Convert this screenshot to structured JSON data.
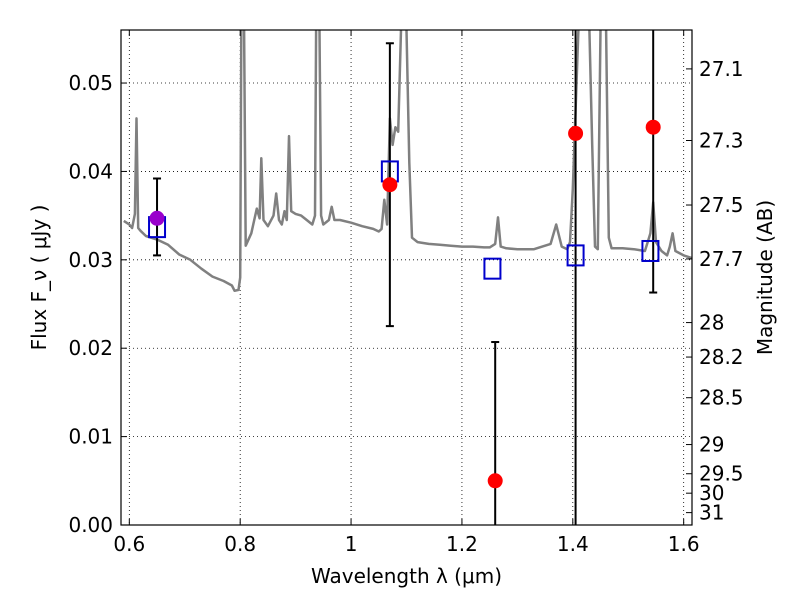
{
  "chart_data": {
    "type": "scatter",
    "xlabel": "Wavelength  λ (μm)",
    "ylabel": "Flux  F_ν  ( μJy )",
    "ylabel_right": "Magnitude (AB)",
    "xlim": [
      0.585,
      1.615
    ],
    "ylim": [
      0.0,
      0.056
    ],
    "grid": true,
    "x_ticks": [
      0.6,
      0.8,
      1.0,
      1.2,
      1.4,
      1.6
    ],
    "x_tick_labels": [
      "0.6",
      "0.8",
      "1",
      "1.2",
      "1.4",
      "1.6"
    ],
    "y_ticks": [
      0.0,
      0.01,
      0.02,
      0.03,
      0.04,
      0.05
    ],
    "y_tick_labels": [
      "0.00",
      "0.01",
      "0.02",
      "0.03",
      "0.04",
      "0.05"
    ],
    "right_ticks": [
      {
        "label": "27.1",
        "flux": 0.0516
      },
      {
        "label": "27.3",
        "flux": 0.0435
      },
      {
        "label": "27.5",
        "flux": 0.0362
      },
      {
        "label": "27.7",
        "flux": 0.0301
      },
      {
        "label": "28",
        "flux": 0.0229
      },
      {
        "label": "28.2",
        "flux": 0.019
      },
      {
        "label": "28.5",
        "flux": 0.0144
      },
      {
        "label": "29",
        "flux": 0.0091
      },
      {
        "label": "29.5",
        "flux": 0.0058
      },
      {
        "label": "30",
        "flux": 0.0036
      },
      {
        "label": "31",
        "flux": 0.0014
      }
    ],
    "series": [
      {
        "kind": "line",
        "color": "#808080",
        "segments": [
          [
            [
              0.59,
              0.0344
            ],
            [
              0.6,
              0.034
            ],
            [
              0.605,
              0.0336
            ],
            [
              0.61,
              0.0352
            ],
            [
              0.613,
              0.046
            ],
            [
              0.616,
              0.0336
            ],
            [
              0.62,
              0.0333
            ],
            [
              0.63,
              0.0327
            ],
            [
              0.65,
              0.0323
            ],
            [
              0.67,
              0.0317
            ],
            [
              0.69,
              0.0306
            ],
            [
              0.71,
              0.03
            ],
            [
              0.73,
              0.029
            ],
            [
              0.75,
              0.0281
            ],
            [
              0.77,
              0.0276
            ],
            [
              0.785,
              0.0271
            ],
            [
              0.79,
              0.0265
            ],
            [
              0.797,
              0.0266
            ],
            [
              0.8,
              0.028
            ],
            [
              0.802,
              0.056
            ]
          ],
          [
            [
              0.807,
              0.056
            ],
            [
              0.81,
              0.0316
            ],
            [
              0.82,
              0.033
            ],
            [
              0.83,
              0.0358
            ],
            [
              0.835,
              0.0347
            ],
            [
              0.838,
              0.0415
            ],
            [
              0.842,
              0.0345
            ],
            [
              0.85,
              0.0338
            ],
            [
              0.86,
              0.035
            ],
            [
              0.865,
              0.0375
            ],
            [
              0.87,
              0.0345
            ],
            [
              0.875,
              0.034
            ],
            [
              0.88,
              0.0355
            ],
            [
              0.884,
              0.0345
            ],
            [
              0.888,
              0.044
            ],
            [
              0.892,
              0.0355
            ],
            [
              0.9,
              0.0352
            ],
            [
              0.91,
              0.035
            ],
            [
              0.92,
              0.0345
            ],
            [
              0.93,
              0.034
            ],
            [
              0.935,
              0.035
            ],
            [
              0.937,
              0.056
            ]
          ],
          [
            [
              0.943,
              0.056
            ],
            [
              0.946,
              0.035
            ],
            [
              0.95,
              0.034
            ],
            [
              0.96,
              0.0345
            ],
            [
              0.965,
              0.036
            ],
            [
              0.97,
              0.0345
            ],
            [
              0.98,
              0.0345
            ],
            [
              1.0,
              0.0342
            ],
            [
              1.02,
              0.0338
            ],
            [
              1.04,
              0.0335
            ],
            [
              1.05,
              0.0332
            ],
            [
              1.055,
              0.0335
            ],
            [
              1.06,
              0.0368
            ],
            [
              1.065,
              0.034
            ],
            [
              1.07,
              0.046
            ],
            [
              1.075,
              0.043
            ],
            [
              1.08,
              0.045
            ],
            [
              1.085,
              0.0445
            ],
            [
              1.09,
              0.056
            ]
          ],
          [
            [
              1.1,
              0.056
            ],
            [
              1.105,
              0.041
            ],
            [
              1.11,
              0.0325
            ],
            [
              1.12,
              0.032
            ],
            [
              1.14,
              0.0318
            ],
            [
              1.16,
              0.0317
            ],
            [
              1.18,
              0.0316
            ],
            [
              1.2,
              0.0315
            ],
            [
              1.22,
              0.0315
            ],
            [
              1.24,
              0.0314
            ],
            [
              1.25,
              0.0314
            ],
            [
              1.26,
              0.0318
            ],
            [
              1.265,
              0.0348
            ],
            [
              1.27,
              0.0315
            ],
            [
              1.28,
              0.0313
            ],
            [
              1.3,
              0.0312
            ],
            [
              1.32,
              0.0312
            ],
            [
              1.33,
              0.0312
            ],
            [
              1.34,
              0.0314
            ],
            [
              1.36,
              0.0318
            ],
            [
              1.37,
              0.034
            ],
            [
              1.38,
              0.0315
            ],
            [
              1.39,
              0.0312
            ],
            [
              1.395,
              0.032
            ],
            [
              1.4,
              0.038
            ],
            [
              1.41,
              0.056
            ]
          ],
          [
            [
              1.43,
              0.056
            ],
            [
              1.435,
              0.043
            ],
            [
              1.44,
              0.0315
            ],
            [
              1.445,
              0.0312
            ],
            [
              1.45,
              0.056
            ]
          ],
          [
            [
              1.46,
              0.056
            ],
            [
              1.465,
              0.0325
            ],
            [
              1.47,
              0.0313
            ],
            [
              1.49,
              0.0313
            ],
            [
              1.51,
              0.0312
            ],
            [
              1.53,
              0.031
            ],
            [
              1.535,
              0.032
            ],
            [
              1.54,
              0.033
            ],
            [
              1.545,
              0.0365
            ],
            [
              1.55,
              0.032
            ],
            [
              1.56,
              0.031
            ],
            [
              1.57,
              0.0305
            ],
            [
              1.575,
              0.0315
            ],
            [
              1.58,
              0.033
            ],
            [
              1.585,
              0.031
            ],
            [
              1.6,
              0.0305
            ],
            [
              1.615,
              0.0302
            ]
          ]
        ]
      },
      {
        "kind": "points",
        "marker": "open-square",
        "color": "#0000cc",
        "points": [
          {
            "x": 0.65,
            "y": 0.0337
          },
          {
            "x": 1.07,
            "y": 0.04
          },
          {
            "x": 1.255,
            "y": 0.029
          },
          {
            "x": 1.405,
            "y": 0.0305
          },
          {
            "x": 1.54,
            "y": 0.031
          }
        ]
      },
      {
        "kind": "points",
        "marker": "filled-circle",
        "color": "#ff0000",
        "points": [
          {
            "x": 0.65,
            "y": 0.0347,
            "color": "#9900cc",
            "err_low": 0.0305,
            "err_high": 0.0392
          },
          {
            "x": 1.07,
            "y": 0.0385,
            "err_low": 0.0225,
            "err_high": 0.0545
          },
          {
            "x": 1.26,
            "y": 0.005,
            "err_low": 0.0,
            "err_high": 0.0207
          },
          {
            "x": 1.405,
            "y": 0.0443,
            "err_low": 0.0,
            "err_high": 0.056
          },
          {
            "x": 1.545,
            "y": 0.045,
            "err_low": 0.0263,
            "err_high": 0.056
          }
        ]
      }
    ]
  }
}
